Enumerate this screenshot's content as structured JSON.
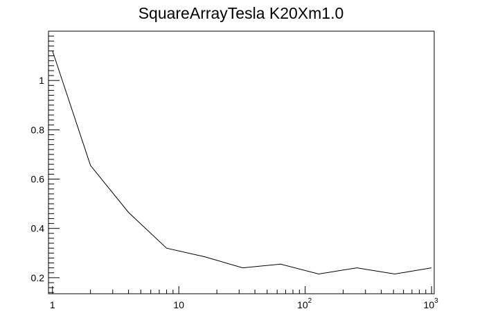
{
  "chart_data": {
    "type": "line",
    "title": "SquareArrayTesla K20Xm1.0",
    "xlabel": "",
    "ylabel": "",
    "x_scale": "log",
    "xlim": [
      0.93,
      1050
    ],
    "ylim": [
      0.135,
      1.2
    ],
    "grid": false,
    "x_ticks": [
      {
        "value": 1,
        "label": "1",
        "exp": ""
      },
      {
        "value": 10,
        "label": "10",
        "exp": ""
      },
      {
        "value": 100,
        "label": "10",
        "exp": "2"
      },
      {
        "value": 1000,
        "label": "10",
        "exp": "3"
      }
    ],
    "y_ticks": [
      {
        "value": 0.2,
        "label": "0.2"
      },
      {
        "value": 0.4,
        "label": "0.4"
      },
      {
        "value": 0.6,
        "label": "0.6"
      },
      {
        "value": 0.8,
        "label": "0.8"
      },
      {
        "value": 1.0,
        "label": "1"
      }
    ],
    "series": [
      {
        "color": "#000000",
        "x": [
          1,
          2,
          4,
          8,
          16,
          32,
          64,
          128,
          256,
          512,
          1000
        ],
        "y": [
          1.12,
          0.655,
          0.465,
          0.32,
          0.285,
          0.24,
          0.255,
          0.215,
          0.24,
          0.215,
          0.24
        ]
      }
    ]
  }
}
